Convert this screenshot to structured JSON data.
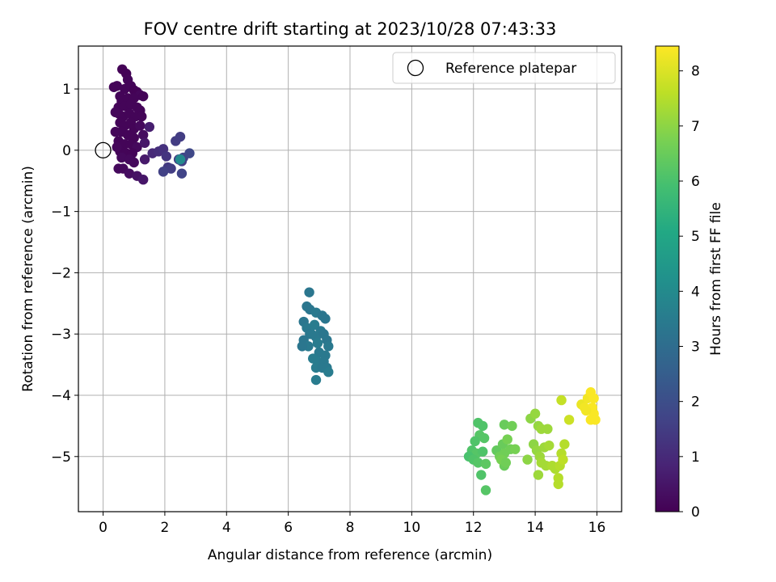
{
  "chart_data": {
    "type": "scatter",
    "title": "FOV centre drift starting at 2023/10/28 07:43:33",
    "xlabel": "Angular distance from reference (arcmin)",
    "ylabel": "Rotation from reference (arcmin)",
    "xlim": [
      -0.8,
      16.8
    ],
    "ylim": [
      -5.9,
      1.7
    ],
    "xticks": [
      0,
      2,
      4,
      6,
      8,
      10,
      12,
      14,
      16
    ],
    "xtick_labels": [
      "0",
      "2",
      "4",
      "6",
      "8",
      "10",
      "12",
      "14",
      "16"
    ],
    "yticks": [
      1,
      0,
      -1,
      -2,
      -3,
      -4,
      -5
    ],
    "ytick_labels": [
      "1",
      "0",
      "−1",
      "−2",
      "−3",
      "−4",
      "−5"
    ],
    "grid": true,
    "legend": {
      "position": "top-right",
      "entries": [
        "Reference platepar"
      ]
    },
    "reference_point": {
      "x": 0,
      "y": 0,
      "marker": "open-circle",
      "color": "#000000"
    },
    "colormap": "viridis",
    "colorbar": {
      "label": "Hours from first FF file",
      "range": [
        0,
        8.45
      ],
      "ticks": [
        0,
        1,
        2,
        3,
        4,
        5,
        6,
        7,
        8
      ],
      "tick_labels": [
        "0",
        "1",
        "2",
        "3",
        "4",
        "5",
        "6",
        "7",
        "8"
      ]
    },
    "points": [
      [
        0.62,
        1.32,
        0.05
      ],
      [
        0.75,
        1.25,
        0.05
      ],
      [
        0.8,
        1.15,
        0.1
      ],
      [
        0.45,
        1.05,
        0.1
      ],
      [
        0.7,
        1.0,
        0.1
      ],
      [
        0.9,
        1.05,
        0.1
      ],
      [
        1.0,
        0.98,
        0.05
      ],
      [
        1.1,
        0.95,
        0.05
      ],
      [
        1.2,
        0.9,
        0.15
      ],
      [
        1.3,
        0.88,
        0.1
      ],
      [
        0.55,
        0.88,
        0.1
      ],
      [
        0.6,
        0.8,
        0.1
      ],
      [
        0.8,
        0.85,
        0.1
      ],
      [
        1.0,
        0.85,
        0.1
      ],
      [
        0.5,
        0.7,
        0.1
      ],
      [
        0.7,
        0.72,
        0.1
      ],
      [
        0.9,
        0.75,
        0.1
      ],
      [
        1.1,
        0.7,
        0.1
      ],
      [
        1.2,
        0.65,
        0.1
      ],
      [
        0.5,
        0.6,
        0.1
      ],
      [
        0.65,
        0.55,
        0.1
      ],
      [
        0.85,
        0.6,
        0.1
      ],
      [
        1.05,
        0.55,
        0.1
      ],
      [
        1.25,
        0.55,
        0.1
      ],
      [
        0.55,
        0.45,
        0.1
      ],
      [
        0.7,
        0.4,
        0.1
      ],
      [
        0.9,
        0.45,
        0.1
      ],
      [
        1.0,
        0.35,
        0.1
      ],
      [
        1.2,
        0.4,
        0.2
      ],
      [
        0.6,
        0.3,
        0.1
      ],
      [
        0.8,
        0.25,
        0.1
      ],
      [
        1.0,
        0.2,
        0.1
      ],
      [
        1.3,
        0.25,
        0.3
      ],
      [
        1.5,
        0.38,
        0.7
      ],
      [
        0.5,
        0.15,
        0.1
      ],
      [
        0.7,
        0.1,
        0.1
      ],
      [
        0.9,
        0.1,
        0.1
      ],
      [
        1.1,
        0.05,
        0.2
      ],
      [
        1.35,
        0.12,
        0.5
      ],
      [
        0.55,
        -0.02,
        0.1
      ],
      [
        0.75,
        -0.05,
        0.1
      ],
      [
        0.95,
        -0.05,
        0.1
      ],
      [
        0.6,
        -0.12,
        0.2
      ],
      [
        0.85,
        -0.15,
        0.2
      ],
      [
        1.0,
        -0.2,
        0.2
      ],
      [
        0.5,
        -0.3,
        0.2
      ],
      [
        0.65,
        -0.3,
        0.2
      ],
      [
        0.85,
        -0.38,
        0.3
      ],
      [
        1.1,
        -0.42,
        0.4
      ],
      [
        1.3,
        -0.48,
        0.5
      ],
      [
        0.4,
        0.62,
        0.15
      ],
      [
        0.4,
        0.3,
        0.15
      ],
      [
        0.45,
        0.05,
        0.15
      ],
      [
        1.35,
        -0.15,
        0.6
      ],
      [
        1.6,
        -0.05,
        1.0
      ],
      [
        1.8,
        -0.02,
        1.1
      ],
      [
        1.95,
        0.02,
        1.2
      ],
      [
        2.05,
        -0.1,
        1.3
      ],
      [
        2.1,
        -0.28,
        1.4
      ],
      [
        2.35,
        0.15,
        1.5
      ],
      [
        2.5,
        0.22,
        1.5
      ],
      [
        2.45,
        -0.15,
        1.6
      ],
      [
        2.55,
        -0.18,
        1.6
      ],
      [
        2.6,
        -0.12,
        1.7
      ],
      [
        2.8,
        -0.05,
        1.8
      ],
      [
        2.2,
        -0.3,
        1.5
      ],
      [
        1.95,
        -0.35,
        1.6
      ],
      [
        2.55,
        -0.38,
        1.7
      ],
      [
        2.5,
        -0.15,
        4.0
      ],
      [
        0.35,
        1.03,
        0.1
      ],
      [
        6.68,
        -2.32,
        3.3
      ],
      [
        6.6,
        -2.55,
        3.3
      ],
      [
        6.7,
        -2.6,
        3.3
      ],
      [
        6.9,
        -2.65,
        3.4
      ],
      [
        7.1,
        -2.7,
        3.3
      ],
      [
        7.2,
        -2.75,
        3.3
      ],
      [
        6.5,
        -2.8,
        3.3
      ],
      [
        6.6,
        -2.9,
        3.4
      ],
      [
        6.85,
        -2.85,
        3.5
      ],
      [
        7.05,
        -2.95,
        3.4
      ],
      [
        6.7,
        -3.0,
        3.3
      ],
      [
        6.9,
        -3.05,
        3.4
      ],
      [
        7.15,
        -3.0,
        3.3
      ],
      [
        7.25,
        -3.1,
        3.3
      ],
      [
        6.5,
        -3.1,
        3.3
      ],
      [
        6.65,
        -3.2,
        3.4
      ],
      [
        6.95,
        -3.15,
        3.5
      ],
      [
        7.3,
        -3.2,
        3.4
      ],
      [
        6.45,
        -3.2,
        3.3
      ],
      [
        7.0,
        -3.3,
        3.4
      ],
      [
        7.2,
        -3.35,
        3.4
      ],
      [
        6.8,
        -3.4,
        3.5
      ],
      [
        6.95,
        -3.45,
        3.5
      ],
      [
        7.15,
        -3.45,
        3.4
      ],
      [
        6.9,
        -3.55,
        3.5
      ],
      [
        7.1,
        -3.55,
        3.4
      ],
      [
        7.25,
        -3.55,
        3.4
      ],
      [
        7.3,
        -3.62,
        3.5
      ],
      [
        6.9,
        -3.75,
        3.5
      ],
      [
        6.75,
        -3.0,
        3.4
      ],
      [
        12.15,
        -4.45,
        6.1
      ],
      [
        12.3,
        -4.5,
        6.1
      ],
      [
        12.2,
        -4.65,
        6.2
      ],
      [
        12.05,
        -4.75,
        6.1
      ],
      [
        12.35,
        -4.7,
        6.2
      ],
      [
        11.95,
        -4.9,
        6.1
      ],
      [
        12.1,
        -4.95,
        6.2
      ],
      [
        12.3,
        -4.92,
        6.1
      ],
      [
        11.85,
        -5.0,
        6.0
      ],
      [
        12.0,
        -5.05,
        6.1
      ],
      [
        12.15,
        -5.1,
        6.2
      ],
      [
        12.4,
        -5.12,
        6.3
      ],
      [
        12.25,
        -5.3,
        6.1
      ],
      [
        12.4,
        -5.55,
        6.2
      ],
      [
        12.75,
        -4.9,
        6.4
      ],
      [
        12.95,
        -4.8,
        6.5
      ],
      [
        13.0,
        -4.95,
        6.6
      ],
      [
        13.1,
        -4.72,
        6.7
      ],
      [
        13.0,
        -4.48,
        6.5
      ],
      [
        13.25,
        -4.5,
        6.6
      ],
      [
        12.85,
        -5.0,
        6.6
      ],
      [
        13.0,
        -5.15,
        6.5
      ],
      [
        13.2,
        -4.88,
        6.6
      ],
      [
        12.9,
        -5.05,
        6.7
      ],
      [
        13.05,
        -5.1,
        6.6
      ],
      [
        13.35,
        -4.88,
        6.7
      ],
      [
        13.75,
        -5.05,
        7.0
      ],
      [
        13.85,
        -4.38,
        7.0
      ],
      [
        14.0,
        -4.3,
        7.1
      ],
      [
        14.1,
        -4.5,
        7.1
      ],
      [
        14.2,
        -4.55,
        7.2
      ],
      [
        14.4,
        -4.55,
        7.2
      ],
      [
        13.95,
        -4.8,
        7.0
      ],
      [
        14.05,
        -4.9,
        7.1
      ],
      [
        14.15,
        -5.0,
        7.2
      ],
      [
        14.3,
        -4.85,
        7.2
      ],
      [
        14.45,
        -4.82,
        7.3
      ],
      [
        14.2,
        -5.1,
        7.3
      ],
      [
        14.35,
        -5.15,
        7.3
      ],
      [
        14.1,
        -5.3,
        7.2
      ],
      [
        14.55,
        -5.15,
        7.4
      ],
      [
        14.65,
        -5.2,
        7.4
      ],
      [
        14.8,
        -5.15,
        7.5
      ],
      [
        14.85,
        -4.95,
        7.5
      ],
      [
        14.95,
        -4.8,
        7.5
      ],
      [
        14.75,
        -5.35,
        7.5
      ],
      [
        14.75,
        -5.45,
        7.5
      ],
      [
        15.1,
        -4.4,
        7.8
      ],
      [
        14.85,
        -4.08,
        7.7
      ],
      [
        15.5,
        -4.15,
        8.2
      ],
      [
        15.6,
        -4.2,
        8.3
      ],
      [
        15.7,
        -4.05,
        8.3
      ],
      [
        15.8,
        -3.95,
        8.4
      ],
      [
        15.9,
        -4.05,
        8.4
      ],
      [
        15.85,
        -4.2,
        8.4
      ],
      [
        15.9,
        -4.3,
        8.4
      ],
      [
        15.8,
        -4.4,
        8.4
      ],
      [
        15.95,
        -4.4,
        8.4
      ],
      [
        15.65,
        -4.25,
        8.3
      ],
      [
        14.9,
        -5.05,
        7.6
      ]
    ]
  }
}
